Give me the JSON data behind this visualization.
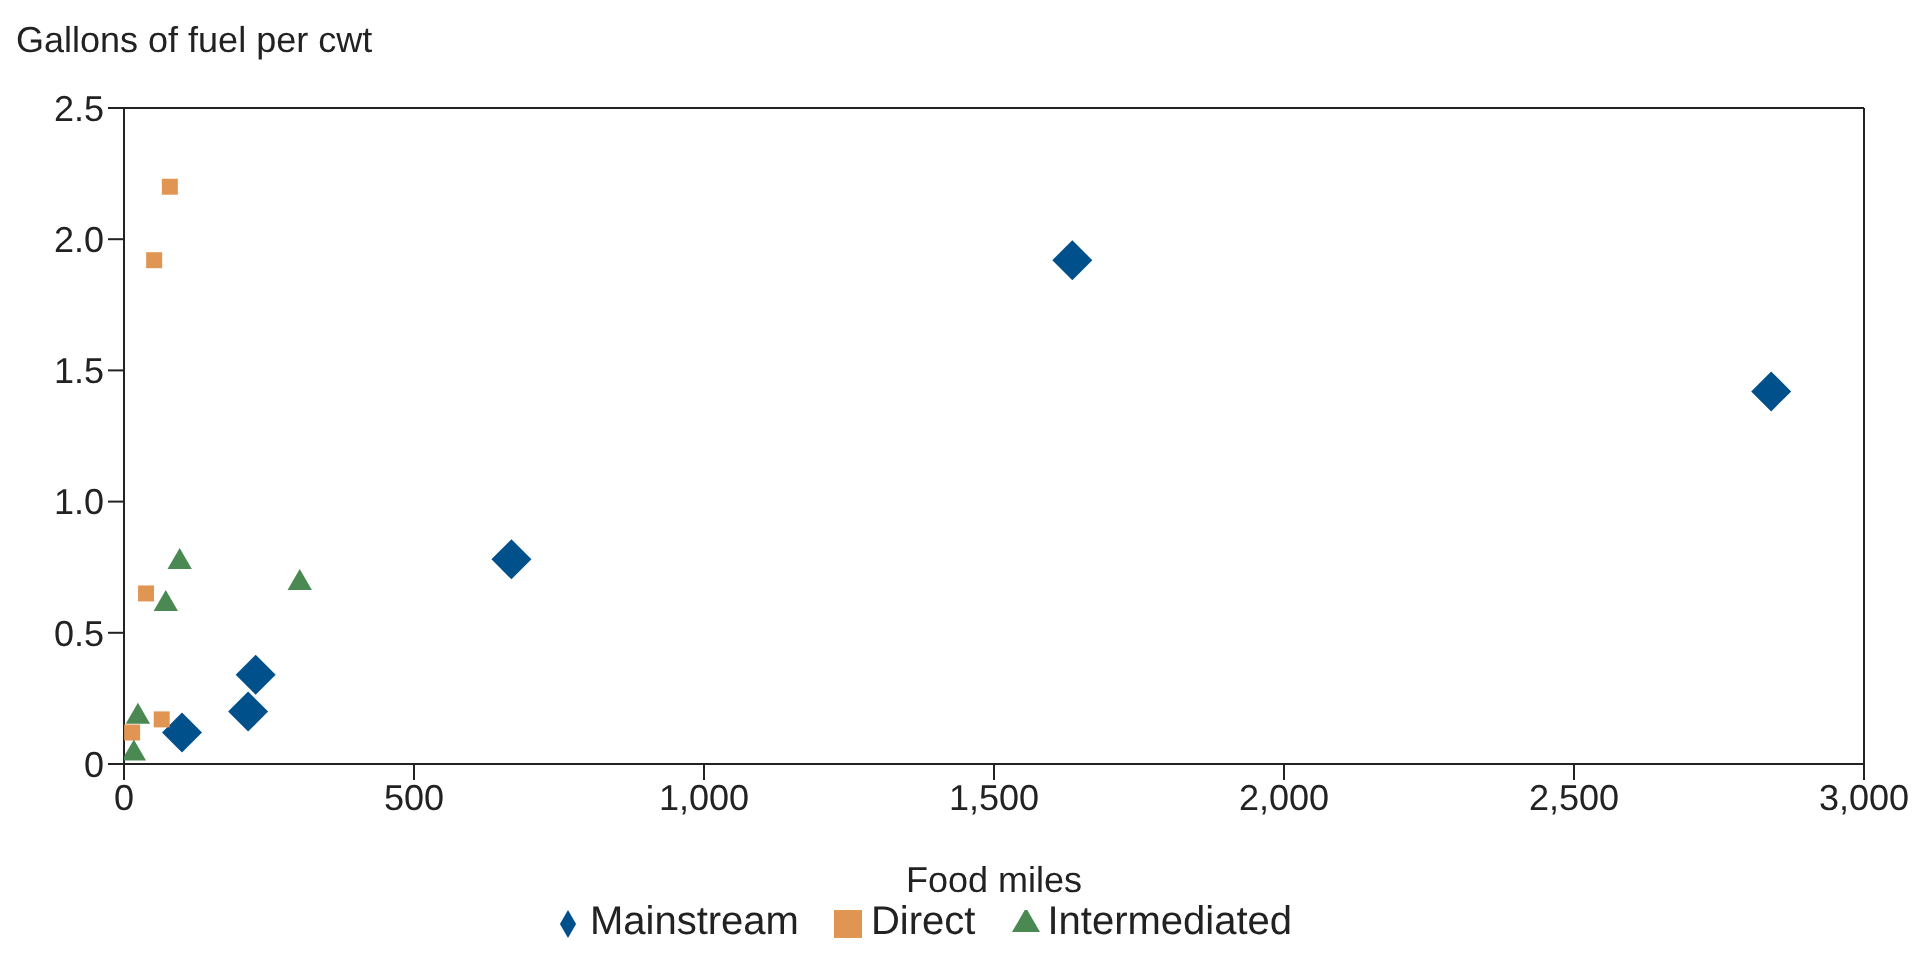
{
  "chart_data": {
    "type": "scatter",
    "xlabel": "Food miles",
    "ylabel": "Gallons of fuel per cwt",
    "xlim": [
      0,
      3000
    ],
    "xticks": [
      0,
      500,
      {
        "value": 1000,
        "label": "1,000"
      },
      {
        "value": 1500,
        "label": "1,500"
      },
      {
        "value": 2000,
        "label": "2,000"
      },
      {
        "value": 2500,
        "label": "2,500"
      },
      {
        "value": 3000,
        "label": "3,000"
      }
    ],
    "ylim": [
      0,
      2.5
    ],
    "yticks": [
      0,
      0.5,
      {
        "value": 1,
        "label": "1.0"
      },
      1.5,
      {
        "value": 2,
        "label": "2.0"
      },
      2.5
    ],
    "legend": "bottom",
    "series": [
      {
        "name": "Mainstream",
        "color": "#00508c",
        "marker": "diamond",
        "x": [
          1635,
          2840,
          668,
          227,
          214,
          100
        ],
        "values": [
          1.92,
          1.42,
          0.78,
          0.34,
          0.2,
          0.12
        ]
      },
      {
        "name": "Direct",
        "color": "#e09553",
        "marker": "square",
        "x": [
          79,
          52,
          38,
          14,
          65
        ],
        "values": [
          2.2,
          1.92,
          0.65,
          0.12,
          0.17
        ]
      },
      {
        "name": "Intermediated",
        "color": "#4a8a52",
        "marker": "triangle",
        "x": [
          96,
          72,
          303,
          24,
          17
        ],
        "values": [
          0.77,
          0.61,
          0.69,
          0.18,
          0.04
        ]
      }
    ]
  }
}
